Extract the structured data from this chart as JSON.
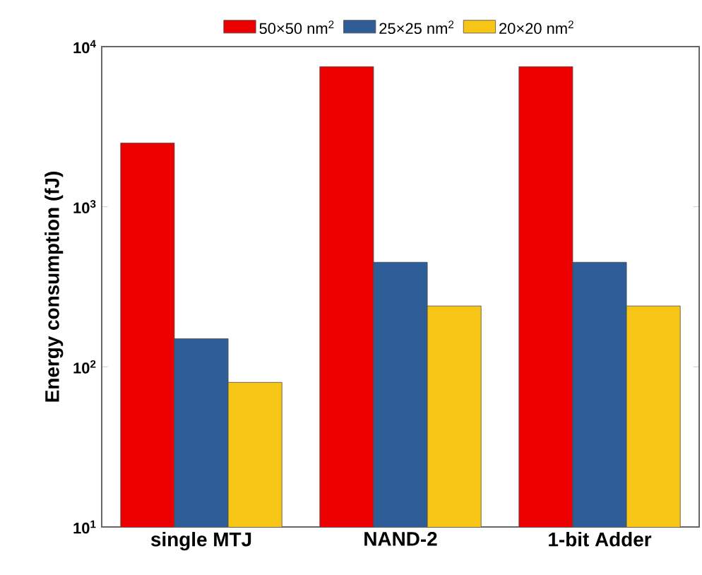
{
  "chart_data": {
    "type": "bar",
    "ylabel": "Energy consumption (fJ)",
    "categories": [
      "single MTJ",
      "NAND-2",
      "1-bit Adder"
    ],
    "series": [
      {
        "name": "50×50 nm$^{2}$",
        "color": "#ec0000",
        "values": [
          2500,
          7500,
          7500
        ]
      },
      {
        "name": "25×25 nm$^{2}$",
        "color": "#2e5d97",
        "values": [
          150,
          450,
          450
        ]
      },
      {
        "name": "20×20 nm$^{2}$",
        "color": "#f7c516",
        "values": [
          80,
          240,
          240
        ]
      }
    ],
    "log": true,
    "ylim": [
      10,
      10000
    ],
    "yticks": [
      {
        "value": 10,
        "label": "10$^{1}$"
      },
      {
        "value": 100,
        "label": "10$^{2}$"
      },
      {
        "value": 1000,
        "label": "10$^{3}$"
      },
      {
        "value": 10000,
        "label": "10$^{4}$"
      }
    ],
    "legend": "top",
    "grid": false
  }
}
